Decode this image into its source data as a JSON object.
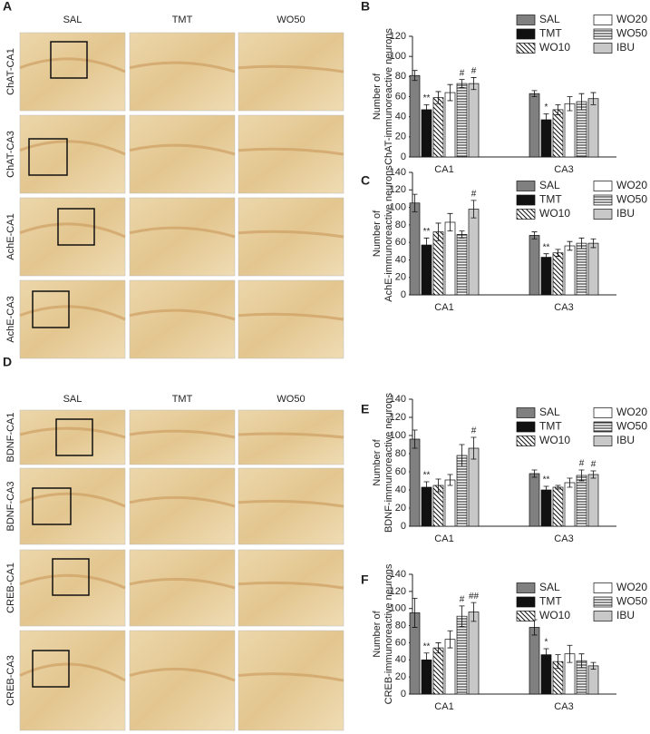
{
  "panels": [
    {
      "letter": "A",
      "columns": [
        "SAL",
        "TMT",
        "WO50"
      ],
      "rows": [
        "ChAT-CA1",
        "ChAT-CA3",
        "AchE-CA1",
        "AchE-CA3"
      ]
    },
    {
      "letter": "D",
      "columns": [
        "SAL",
        "TMT",
        "WO50"
      ],
      "rows": [
        "BDNF-CA1",
        "BDNF-CA3",
        "CREB-CA1",
        "CREB-CA3"
      ]
    }
  ],
  "chart_data": [
    {
      "type": "bar",
      "letter": "B",
      "ylabel": [
        "Number of",
        "ChAT-immunoreactive neurons"
      ],
      "categories": [
        "CA1",
        "CA3"
      ],
      "ylim": [
        0,
        120
      ],
      "yticks": [
        0,
        20,
        40,
        60,
        80,
        100,
        120
      ],
      "series": [
        {
          "name": "SAL",
          "color": "#808080",
          "pattern": "solid",
          "values": [
            81,
            63
          ],
          "errors": [
            5,
            3
          ],
          "significance": [
            null,
            null
          ]
        },
        {
          "name": "TMT",
          "color": "#111111",
          "pattern": "solid",
          "values": [
            47,
            37
          ],
          "errors": [
            5,
            6
          ],
          "significance": [
            "**",
            "*"
          ]
        },
        {
          "name": "WO10",
          "color": "#ffffff",
          "pattern": "diagonal",
          "values": [
            59,
            47
          ],
          "errors": [
            6,
            5
          ],
          "significance": [
            null,
            null
          ]
        },
        {
          "name": "WO20",
          "color": "#ffffff",
          "pattern": "solid",
          "values": [
            64,
            53
          ],
          "errors": [
            8,
            7
          ],
          "significance": [
            null,
            null
          ]
        },
        {
          "name": "WO50",
          "color": "#ffffff",
          "pattern": "horizontal",
          "values": [
            73,
            55
          ],
          "errors": [
            4,
            8
          ],
          "significance": [
            "#",
            null
          ]
        },
        {
          "name": "IBU",
          "color": "#c8c8c8",
          "pattern": "solid",
          "values": [
            73,
            58
          ],
          "errors": [
            6,
            6
          ],
          "significance": [
            "#",
            null
          ]
        }
      ]
    },
    {
      "type": "bar",
      "letter": "C",
      "ylabel": [
        "Number of",
        "AchE-immunoreactive neurons"
      ],
      "categories": [
        "CA1",
        "CA3"
      ],
      "ylim": [
        0,
        140
      ],
      "yticks": [
        0,
        20,
        40,
        60,
        80,
        100,
        120,
        140
      ],
      "series": [
        {
          "name": "SAL",
          "color": "#808080",
          "pattern": "solid",
          "values": [
            105,
            68
          ],
          "errors": [
            10,
            4
          ],
          "significance": [
            null,
            null
          ]
        },
        {
          "name": "TMT",
          "color": "#111111",
          "pattern": "solid",
          "values": [
            57,
            43
          ],
          "errors": [
            8,
            4
          ],
          "significance": [
            "**",
            "**"
          ]
        },
        {
          "name": "WO10",
          "color": "#ffffff",
          "pattern": "diagonal",
          "values": [
            72,
            48
          ],
          "errors": [
            10,
            4
          ],
          "significance": [
            null,
            null
          ]
        },
        {
          "name": "WO20",
          "color": "#ffffff",
          "pattern": "solid",
          "values": [
            83,
            56
          ],
          "errors": [
            10,
            5
          ],
          "significance": [
            null,
            null
          ]
        },
        {
          "name": "WO50",
          "color": "#ffffff",
          "pattern": "horizontal",
          "values": [
            69,
            59
          ],
          "errors": [
            4,
            6
          ],
          "significance": [
            null,
            null
          ]
        },
        {
          "name": "IBU",
          "color": "#c8c8c8",
          "pattern": "solid",
          "values": [
            98,
            59
          ],
          "errors": [
            10,
            5
          ],
          "significance": [
            "#",
            null
          ]
        }
      ]
    },
    {
      "type": "bar",
      "letter": "E",
      "ylabel": [
        "Number of",
        "BDNF-immunoreactive neurons"
      ],
      "categories": [
        "CA1",
        "CA3"
      ],
      "ylim": [
        0,
        140
      ],
      "yticks": [
        0,
        20,
        40,
        60,
        80,
        100,
        120,
        140
      ],
      "series": [
        {
          "name": "SAL",
          "color": "#808080",
          "pattern": "solid",
          "values": [
            96,
            58
          ],
          "errors": [
            10,
            4
          ],
          "significance": [
            null,
            null
          ]
        },
        {
          "name": "TMT",
          "color": "#111111",
          "pattern": "solid",
          "values": [
            43,
            40
          ],
          "errors": [
            6,
            4
          ],
          "significance": [
            "**",
            "**"
          ]
        },
        {
          "name": "WO10",
          "color": "#ffffff",
          "pattern": "diagonal",
          "values": [
            45,
            43
          ],
          "errors": [
            7,
            2
          ],
          "significance": [
            null,
            null
          ]
        },
        {
          "name": "WO20",
          "color": "#ffffff",
          "pattern": "solid",
          "values": [
            51,
            48
          ],
          "errors": [
            6,
            5
          ],
          "significance": [
            null,
            null
          ]
        },
        {
          "name": "WO50",
          "color": "#ffffff",
          "pattern": "horizontal",
          "values": [
            78,
            56
          ],
          "errors": [
            12,
            6
          ],
          "significance": [
            null,
            "#"
          ]
        },
        {
          "name": "IBU",
          "color": "#c8c8c8",
          "pattern": "solid",
          "values": [
            86,
            57
          ],
          "errors": [
            12,
            4
          ],
          "significance": [
            "#",
            "#"
          ]
        }
      ]
    },
    {
      "type": "bar",
      "letter": "F",
      "ylabel": [
        "Number of",
        "CREB-immunoreactive neurons"
      ],
      "categories": [
        "CA1",
        "CA3"
      ],
      "ylim": [
        0,
        140
      ],
      "yticks": [
        0,
        20,
        40,
        60,
        80,
        100,
        120,
        140
      ],
      "series": [
        {
          "name": "SAL",
          "color": "#808080",
          "pattern": "solid",
          "values": [
            95,
            78
          ],
          "errors": [
            17,
            9
          ],
          "significance": [
            null,
            null
          ]
        },
        {
          "name": "TMT",
          "color": "#111111",
          "pattern": "solid",
          "values": [
            40,
            46
          ],
          "errors": [
            8,
            7
          ],
          "significance": [
            "**",
            "*"
          ]
        },
        {
          "name": "WO10",
          "color": "#ffffff",
          "pattern": "diagonal",
          "values": [
            54,
            38
          ],
          "errors": [
            6,
            8
          ],
          "significance": [
            null,
            null
          ]
        },
        {
          "name": "WO20",
          "color": "#ffffff",
          "pattern": "solid",
          "values": [
            64,
            47
          ],
          "errors": [
            10,
            10
          ],
          "significance": [
            null,
            null
          ]
        },
        {
          "name": "WO50",
          "color": "#ffffff",
          "pattern": "horizontal",
          "values": [
            91,
            39
          ],
          "errors": [
            12,
            8
          ],
          "significance": [
            "#",
            null
          ]
        },
        {
          "name": "IBU",
          "color": "#c8c8c8",
          "pattern": "solid",
          "values": [
            96,
            33
          ],
          "errors": [
            11,
            4
          ],
          "significance": [
            "##",
            null
          ]
        }
      ]
    }
  ]
}
